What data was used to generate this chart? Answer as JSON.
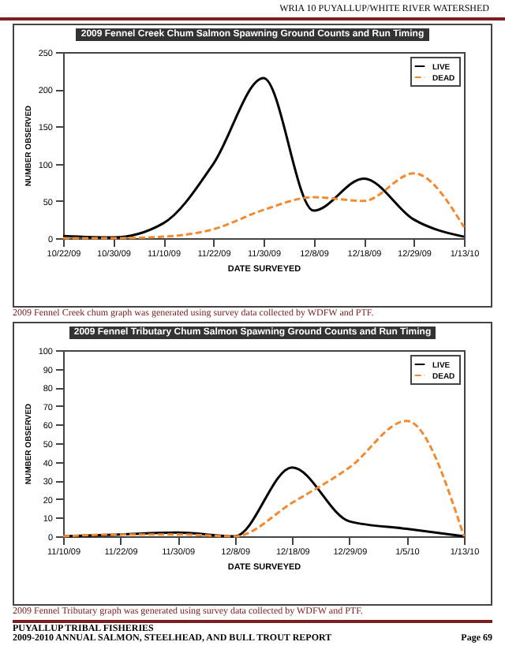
{
  "chart_data": [
    {
      "type": "line",
      "title": "2009 Fennel Creek Chum Salmon Spawning Ground Counts and Run Timing",
      "xlabel": "DATE SURVEYED",
      "ylabel": "NUMBER OBSERVED",
      "categories": [
        "10/22/09",
        "10/30/09",
        "11/10/09",
        "11/22/09",
        "11/30/09",
        "12/8/09",
        "12/18/09",
        "12/29/09",
        "1/13/10"
      ],
      "series": [
        {
          "name": "LIVE",
          "color": "#000000",
          "line_style": "solid",
          "values": [
            3,
            1,
            20,
            100,
            215,
            37,
            80,
            25,
            2
          ]
        },
        {
          "name": "DEAD",
          "color": "#f28a30",
          "line_style": "dashed",
          "values": [
            0,
            0,
            2,
            12,
            38,
            55,
            50,
            87,
            15
          ]
        }
      ],
      "ylim": [
        0,
        250
      ],
      "yticks": [
        0,
        50,
        100,
        150,
        200,
        250
      ],
      "grid": false,
      "legend": "top right",
      "annotations": [
        "WRIA 10 PUYALLUP/WHITE RIVER WATERSHED",
        "2009 Fennel Creek chum graph was generated using survey data collected by WDFW and PTF."
      ]
    },
    {
      "type": "line",
      "title": "2009 Fennel Tributary Chum Salmon Spawning Ground Counts and Run Timing",
      "xlabel": "DATE SURVEYED",
      "ylabel": "NUMBER OBSERVED",
      "categories": [
        "11/10/09",
        "11/22/09",
        "11/30/09",
        "12/8/09",
        "12/18/09",
        "12/29/09",
        "1/5/10",
        "1/13/10"
      ],
      "series": [
        {
          "name": "LIVE",
          "color": "#000000",
          "line_style": "solid",
          "values": [
            0,
            1,
            2,
            0,
            37,
            8,
            4,
            0
          ]
        },
        {
          "name": "DEAD",
          "color": "#f28a30",
          "line_style": "dashed",
          "values": [
            0,
            1,
            1,
            0,
            18,
            37,
            62,
            0
          ]
        }
      ],
      "ylim": [
        0,
        100
      ],
      "yticks": [
        0,
        10,
        20,
        30,
        40,
        50,
        60,
        70,
        80,
        90,
        100
      ],
      "grid": false,
      "legend": "top right",
      "annotations": [
        "2009 Fennel Tributary graph was generated using survey data collected by WDFW and PTF.",
        "PUYALLUP TRIBAL FISHERIES",
        "2009-2010 ANNUAL SALMON, STEELHEAD, AND BULL TROUT REPORT",
        "Page 69"
      ]
    }
  ]
}
